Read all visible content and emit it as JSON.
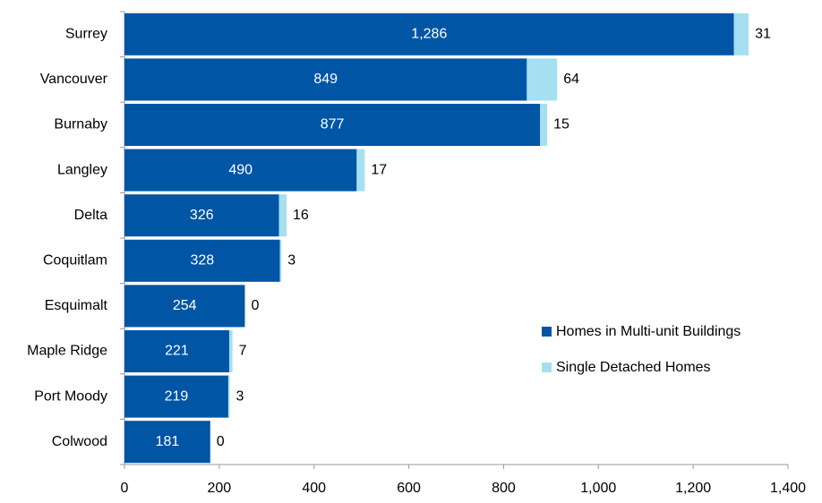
{
  "chart_data": {
    "type": "stacked-barh",
    "categories": [
      "Surrey",
      "Vancouver",
      "Burnaby",
      "Langley",
      "Delta",
      "Coquitlam",
      "Esquimalt",
      "Maple Ridge",
      "Port Moody",
      "Colwood"
    ],
    "series": [
      {
        "name": "Homes in Multi-unit Buildings",
        "color": "#0055a5",
        "values": [
          1286,
          849,
          877,
          490,
          326,
          328,
          254,
          221,
          219,
          181
        ],
        "value_labels": [
          "1,286",
          "849",
          "877",
          "490",
          "326",
          "328",
          "254",
          "221",
          "219",
          "181"
        ]
      },
      {
        "name": "Single Detached Homes",
        "color": "#a6dff0",
        "values": [
          31,
          64,
          15,
          17,
          16,
          3,
          0,
          7,
          3,
          0
        ]
      }
    ],
    "xlim": [
      0,
      1400
    ],
    "xticks": [
      0,
      200,
      400,
      600,
      800,
      {
        "value": 1000,
        "label": "1,000"
      },
      {
        "value": 1200,
        "label": "1,200"
      },
      {
        "value": 1400,
        "label": "1,400"
      }
    ],
    "legend": "right"
  }
}
